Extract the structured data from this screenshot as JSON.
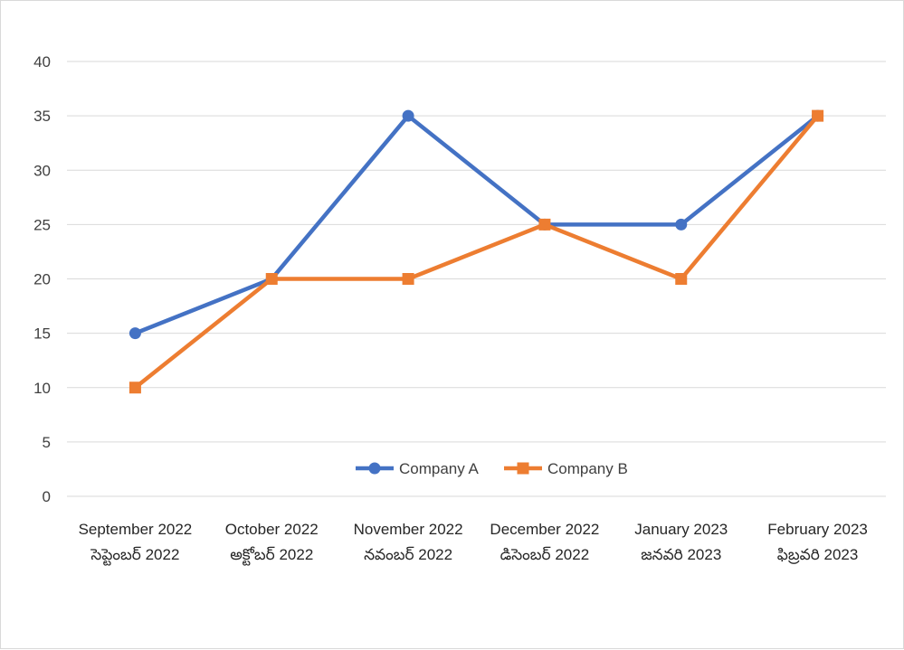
{
  "chart_data": {
    "type": "line",
    "categories": [
      [
        "September 2022",
        "సెప్టెంబర్ 2022"
      ],
      [
        "October  2022",
        "అక్టోబర్ 2022"
      ],
      [
        "November  2022",
        "నవంబర్ 2022"
      ],
      [
        "December  2022",
        "డిసెంబర్ 2022"
      ],
      [
        "January 2023",
        "జనవరి 2023"
      ],
      [
        "February 2023",
        "ఫిబ్రవరి 2023"
      ]
    ],
    "series": [
      {
        "name": "Company A",
        "color": "#4472c4",
        "marker": "circle",
        "values": [
          15,
          20,
          35,
          25,
          25,
          35
        ]
      },
      {
        "name": "Company B",
        "color": "#ed7d31",
        "marker": "square",
        "values": [
          10,
          20,
          20,
          25,
          20,
          35
        ]
      }
    ],
    "ylim": [
      0,
      40
    ],
    "yticks": [
      0,
      5,
      10,
      15,
      20,
      25,
      30,
      35,
      40
    ],
    "grid": true,
    "legend_position": "bottom-inside"
  }
}
